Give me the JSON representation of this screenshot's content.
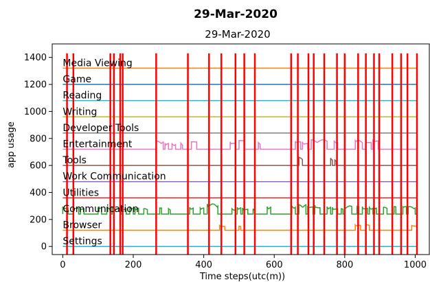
{
  "chart_data": {
    "type": "line",
    "suptitle": "29-Mar-2020",
    "title": "29-Mar-2020",
    "xlabel": "Time steps(utc(m))",
    "ylabel": "app usage",
    "xlim": [
      -30,
      1040
    ],
    "ylim": [
      -60,
      1500
    ],
    "xticks": [
      0,
      200,
      400,
      600,
      800,
      1000
    ],
    "yticks": [
      0,
      200,
      400,
      600,
      800,
      1000,
      1200,
      1400
    ],
    "grid": false,
    "categories": [
      {
        "name": "Settings",
        "baseline": 0,
        "color": "#17becf"
      },
      {
        "name": "Browser",
        "baseline": 120,
        "color": "#ff7f0e"
      },
      {
        "name": "Communication",
        "baseline": 240,
        "color": "#2ca02c"
      },
      {
        "name": "Utilities",
        "baseline": 360,
        "color": "#d62728"
      },
      {
        "name": "Work Communication",
        "baseline": 480,
        "color": "#9467bd"
      },
      {
        "name": "Tools",
        "baseline": 600,
        "color": "#8c564b"
      },
      {
        "name": "Entertainment",
        "baseline": 720,
        "color": "#e377c2"
      },
      {
        "name": "Developer Tools",
        "baseline": 840,
        "color": "#7f7f7f"
      },
      {
        "name": "Writing",
        "baseline": 960,
        "color": "#bcbd22"
      },
      {
        "name": "Reading",
        "baseline": 1080,
        "color": "#17becf"
      },
      {
        "name": "Game",
        "baseline": 1200,
        "color": "#1f77b4"
      },
      {
        "name": "Media Viewing",
        "baseline": 1320,
        "color": "#ff7f0e"
      }
    ],
    "activity": [
      {
        "category": "Entertainment",
        "bursts": [
          [
            265,
            285,
            60
          ],
          [
            290,
            300,
            45
          ],
          [
            310,
            320,
            40
          ],
          [
            335,
            340,
            45
          ],
          [
            365,
            380,
            55
          ],
          [
            475,
            490,
            55
          ],
          [
            500,
            515,
            65
          ],
          [
            555,
            560,
            50
          ],
          [
            660,
            675,
            60
          ],
          [
            680,
            695,
            55
          ],
          [
            705,
            750,
            70
          ],
          [
            770,
            780,
            60
          ],
          [
            830,
            850,
            65
          ],
          [
            860,
            875,
            50
          ],
          [
            880,
            895,
            65
          ]
        ]
      },
      {
        "category": "Tools",
        "bursts": [
          [
            670,
            680,
            60
          ],
          [
            760,
            765,
            55
          ],
          [
            772,
            776,
            40
          ]
        ]
      },
      {
        "category": "Communication",
        "bursts": [
          [
            0,
            15,
            55
          ],
          [
            30,
            45,
            45
          ],
          [
            50,
            60,
            40
          ],
          [
            100,
            110,
            45
          ],
          [
            125,
            135,
            50
          ],
          [
            140,
            165,
            50
          ],
          [
            170,
            180,
            40
          ],
          [
            190,
            200,
            50
          ],
          [
            205,
            215,
            45
          ],
          [
            230,
            240,
            40
          ],
          [
            275,
            280,
            45
          ],
          [
            300,
            305,
            40
          ],
          [
            360,
            370,
            50
          ],
          [
            390,
            400,
            45
          ],
          [
            410,
            440,
            75
          ],
          [
            480,
            490,
            40
          ],
          [
            495,
            505,
            50
          ],
          [
            510,
            525,
            45
          ],
          [
            540,
            545,
            40
          ],
          [
            580,
            590,
            55
          ],
          [
            650,
            660,
            60
          ],
          [
            670,
            690,
            70
          ],
          [
            695,
            710,
            60
          ],
          [
            715,
            730,
            65
          ],
          [
            750,
            760,
            55
          ],
          [
            765,
            780,
            50
          ],
          [
            790,
            795,
            40
          ],
          [
            800,
            820,
            60
          ],
          [
            835,
            840,
            55
          ],
          [
            850,
            865,
            55
          ],
          [
            870,
            880,
            50
          ],
          [
            885,
            890,
            45
          ],
          [
            910,
            920,
            50
          ],
          [
            940,
            945,
            55
          ],
          [
            965,
            975,
            55
          ],
          [
            980,
            1000,
            55
          ]
        ]
      },
      {
        "category": "Browser",
        "bursts": [
          [
            445,
            460,
            35
          ],
          [
            500,
            505,
            30
          ],
          [
            830,
            845,
            40
          ],
          [
            860,
            870,
            40
          ],
          [
            990,
            1005,
            35
          ]
        ]
      }
    ],
    "vlines": {
      "color": "#ff0000",
      "x": [
        12,
        30,
        135,
        145,
        163,
        170,
        265,
        355,
        415,
        450,
        490,
        515,
        545,
        648,
        667,
        697,
        712,
        742,
        778,
        800,
        838,
        860,
        883,
        898,
        935,
        960,
        978,
        1005
      ]
    }
  }
}
